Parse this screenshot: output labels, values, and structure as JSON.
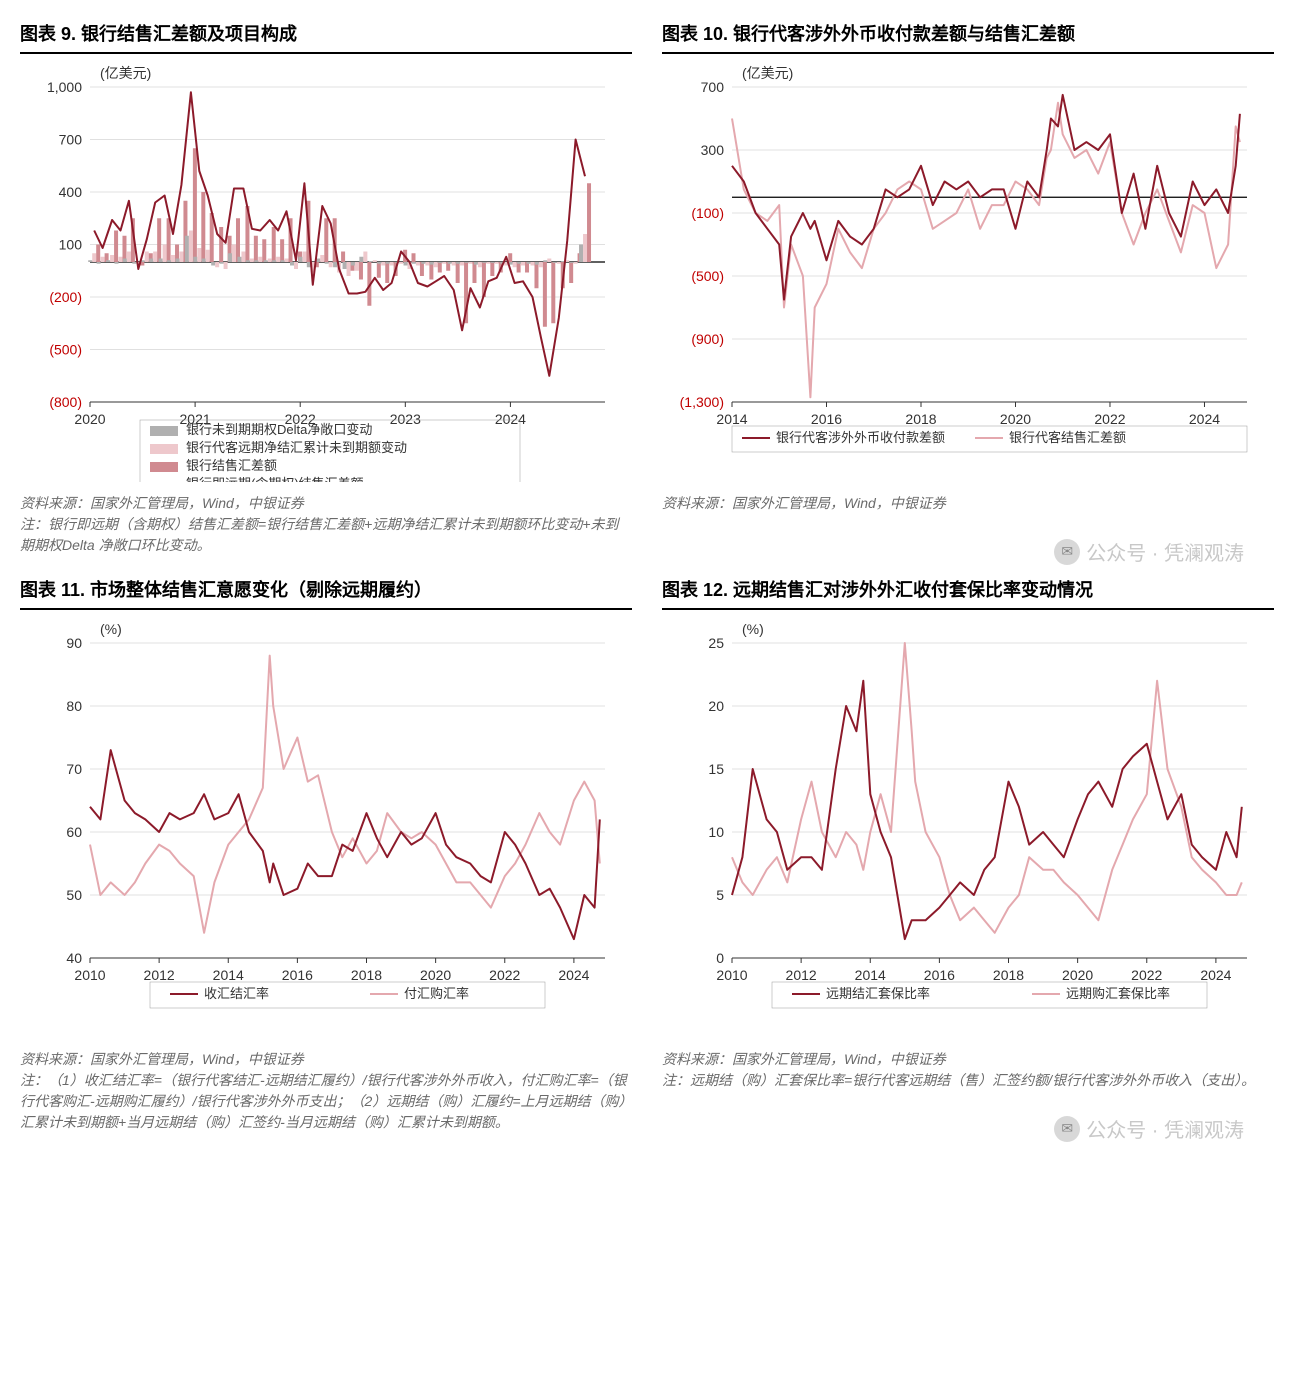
{
  "watermark": "公众号 · 凭澜观涛",
  "chart9": {
    "title": "图表 9. 银行结售汇差额及项目构成",
    "type": "bar+line",
    "y_unit": "(亿美元)",
    "xlim": [
      2020,
      2024.9
    ],
    "ylim": [
      -800,
      1000
    ],
    "yticks": [
      -800,
      -500,
      -200,
      100,
      400,
      700,
      1000
    ],
    "ytick_labels": [
      "(800)",
      "(500)",
      "(200)",
      "100",
      "400",
      "700",
      "1,000"
    ],
    "xticks": [
      2020,
      2021,
      2022,
      2023,
      2024
    ],
    "grid_color": "#e0e0e0",
    "zero_line_color": "#000000",
    "series": {
      "bar_grey": {
        "label": "银行未到期期权Delta净敞口变动",
        "color": "#b0b0b0"
      },
      "bar_light": {
        "label": "银行代客远期净结汇累计未到期额变动",
        "color": "#eec8cc"
      },
      "bar_red": {
        "label": "银行结售汇差额",
        "color": "#d08a90"
      },
      "line_dark": {
        "label": "银行即远期(含期权)结售汇差额",
        "color": "#8c1a2a",
        "width": 2
      }
    },
    "x": [
      2020.04,
      2020.12,
      2020.21,
      2020.29,
      2020.37,
      2020.46,
      2020.54,
      2020.62,
      2020.71,
      2020.79,
      2020.87,
      2020.96,
      2021.04,
      2021.12,
      2021.21,
      2021.29,
      2021.37,
      2021.46,
      2021.54,
      2021.62,
      2021.71,
      2021.79,
      2021.87,
      2021.96,
      2022.04,
      2022.12,
      2022.21,
      2022.29,
      2022.37,
      2022.46,
      2022.54,
      2022.62,
      2022.71,
      2022.79,
      2022.87,
      2022.96,
      2023.04,
      2023.12,
      2023.21,
      2023.29,
      2023.37,
      2023.46,
      2023.54,
      2023.62,
      2023.71,
      2023.79,
      2023.87,
      2023.96,
      2024.04,
      2024.12,
      2024.21,
      2024.29,
      2024.37,
      2024.46,
      2024.54,
      2024.62,
      2024.71
    ],
    "bar_red_values": [
      100,
      50,
      180,
      150,
      250,
      -20,
      50,
      250,
      250,
      100,
      350,
      650,
      400,
      280,
      200,
      150,
      250,
      320,
      150,
      130,
      200,
      130,
      250,
      60,
      350,
      -30,
      250,
      250,
      60,
      -50,
      -100,
      -250,
      -90,
      -120,
      -80,
      70,
      50,
      -80,
      -100,
      -60,
      -50,
      -120,
      -350,
      -120,
      -200,
      -80,
      -60,
      50,
      -60,
      -60,
      -150,
      -370,
      -350,
      -150,
      -120,
      50,
      450
    ],
    "bar_light_values": [
      50,
      30,
      40,
      30,
      60,
      -10,
      60,
      60,
      100,
      40,
      60,
      180,
      80,
      70,
      -30,
      -40,
      100,
      60,
      20,
      30,
      20,
      30,
      20,
      -40,
      60,
      -60,
      40,
      -30,
      -60,
      -80,
      -50,
      60,
      10,
      -20,
      -20,
      -10,
      -40,
      -20,
      -20,
      -30,
      -10,
      -20,
      -20,
      -10,
      -30,
      -10,
      -10,
      -20,
      -30,
      -20,
      -20,
      -30,
      20,
      -10,
      10,
      -10,
      160
    ],
    "bar_grey_values": [
      10,
      -10,
      10,
      -10,
      20,
      -10,
      10,
      20,
      20,
      10,
      20,
      150,
      30,
      20,
      -20,
      -10,
      50,
      30,
      10,
      10,
      10,
      10,
      10,
      -20,
      30,
      -30,
      20,
      -10,
      -30,
      -40,
      -20,
      30,
      5,
      -10,
      -10,
      -5,
      -20,
      -10,
      -10,
      -15,
      -5,
      -10,
      -10,
      -5,
      -15,
      -5,
      -5,
      -10,
      -15,
      -10,
      -10,
      -15,
      10,
      -5,
      5,
      -5,
      100
    ],
    "line_values": [
      180,
      80,
      240,
      180,
      350,
      -40,
      130,
      340,
      380,
      160,
      440,
      970,
      520,
      380,
      160,
      110,
      420,
      420,
      190,
      180,
      240,
      180,
      290,
      10,
      450,
      -130,
      320,
      220,
      -40,
      -180,
      -180,
      -170,
      -90,
      -160,
      -120,
      60,
      0,
      -120,
      -140,
      -110,
      -80,
      -160,
      -390,
      -150,
      -260,
      -110,
      -90,
      30,
      -120,
      -110,
      -200,
      -430,
      -650,
      -320,
      120,
      700,
      490
    ],
    "source": "资料来源：国家外汇管理局，Wind，中银证券",
    "note": "注：银行即远期（含期权）结售汇差额=银行结售汇差额+远期净结汇累计未到期额环比变动+未到期期权Delta 净敞口环比变动。"
  },
  "chart10": {
    "title": "图表 10. 银行代客涉外外币收付款差额与结售汇差额",
    "type": "line",
    "y_unit": "(亿美元)",
    "xlim": [
      2014,
      2024.9
    ],
    "ylim": [
      -1300,
      700
    ],
    "yticks": [
      -1300,
      -900,
      -500,
      -100,
      300,
      700
    ],
    "ytick_labels": [
      "(1,300)",
      "(900)",
      "(500)",
      "(100)",
      "300",
      "700"
    ],
    "xticks": [
      2014,
      2016,
      2018,
      2020,
      2022,
      2024
    ],
    "grid_color": "#e0e0e0",
    "zero_line_color": "#000000",
    "series": {
      "dark": {
        "label": "银行代客涉外外币收付款差额",
        "color": "#8c1a2a",
        "width": 2
      },
      "light": {
        "label": "银行代客结售汇差额",
        "color": "#e4a8ae",
        "width": 2
      }
    },
    "x": [
      2014.0,
      2014.25,
      2014.5,
      2014.75,
      2015.0,
      2015.1,
      2015.25,
      2015.5,
      2015.66,
      2015.75,
      2016.0,
      2016.25,
      2016.5,
      2016.75,
      2017.0,
      2017.25,
      2017.5,
      2017.75,
      2018.0,
      2018.25,
      2018.5,
      2018.75,
      2019.0,
      2019.25,
      2019.5,
      2019.75,
      2020.0,
      2020.25,
      2020.5,
      2020.66,
      2020.75,
      2020.9,
      2021.0,
      2021.25,
      2021.5,
      2021.75,
      2022.0,
      2022.25,
      2022.5,
      2022.75,
      2023.0,
      2023.25,
      2023.5,
      2023.75,
      2024.0,
      2024.25,
      2024.5,
      2024.66,
      2024.75
    ],
    "dark_values": [
      200,
      100,
      -100,
      -200,
      -300,
      -650,
      -250,
      -100,
      -200,
      -150,
      -400,
      -150,
      -250,
      -300,
      -200,
      50,
      0,
      50,
      200,
      -50,
      100,
      50,
      100,
      0,
      50,
      50,
      -200,
      100,
      0,
      300,
      500,
      450,
      650,
      300,
      350,
      300,
      400,
      -100,
      150,
      -200,
      200,
      -100,
      -250,
      100,
      -50,
      50,
      -100,
      200,
      530
    ],
    "light_values": [
      500,
      50,
      -100,
      -150,
      -50,
      -700,
      -300,
      -500,
      -1270,
      -700,
      -550,
      -200,
      -350,
      -450,
      -200,
      -100,
      50,
      100,
      50,
      -200,
      -150,
      -100,
      50,
      -200,
      -50,
      -50,
      100,
      50,
      -50,
      250,
      300,
      600,
      400,
      250,
      300,
      150,
      350,
      -100,
      -300,
      -100,
      50,
      -150,
      -350,
      -50,
      -100,
      -450,
      -300,
      450,
      350
    ],
    "source": "资料来源：国家外汇管理局，Wind，中银证券"
  },
  "chart11": {
    "title": "图表 11. 市场整体结售汇意愿变化（剔除远期履约）",
    "type": "line",
    "y_unit": "(%)",
    "xlim": [
      2010,
      2024.9
    ],
    "ylim": [
      40,
      90
    ],
    "yticks": [
      40,
      50,
      60,
      70,
      80,
      90
    ],
    "ytick_labels": [
      "40",
      "50",
      "60",
      "70",
      "80",
      "90"
    ],
    "xticks": [
      2010,
      2012,
      2014,
      2016,
      2018,
      2020,
      2022,
      2024
    ],
    "grid_color": "#e0e0e0",
    "series": {
      "dark": {
        "label": "收汇结汇率",
        "color": "#8c1a2a",
        "width": 2
      },
      "light": {
        "label": "付汇购汇率",
        "color": "#e4a8ae",
        "width": 2
      }
    },
    "x": [
      2010.0,
      2010.3,
      2010.6,
      2011.0,
      2011.3,
      2011.6,
      2012.0,
      2012.3,
      2012.6,
      2013.0,
      2013.3,
      2013.6,
      2014.0,
      2014.3,
      2014.6,
      2015.0,
      2015.2,
      2015.3,
      2015.6,
      2016.0,
      2016.3,
      2016.6,
      2017.0,
      2017.3,
      2017.6,
      2018.0,
      2018.3,
      2018.6,
      2019.0,
      2019.3,
      2019.6,
      2020.0,
      2020.3,
      2020.6,
      2021.0,
      2021.3,
      2021.6,
      2022.0,
      2022.3,
      2022.6,
      2023.0,
      2023.3,
      2023.6,
      2024.0,
      2024.3,
      2024.6,
      2024.75
    ],
    "dark_values": [
      64,
      62,
      73,
      65,
      63,
      62,
      60,
      63,
      62,
      63,
      66,
      62,
      63,
      66,
      60,
      57,
      52,
      55,
      50,
      51,
      55,
      53,
      53,
      58,
      57,
      63,
      59,
      56,
      60,
      58,
      59,
      63,
      58,
      56,
      55,
      53,
      52,
      60,
      58,
      55,
      50,
      51,
      48,
      43,
      50,
      48,
      62
    ],
    "light_values": [
      58,
      50,
      52,
      50,
      52,
      55,
      58,
      57,
      55,
      53,
      44,
      52,
      58,
      60,
      62,
      67,
      88,
      80,
      70,
      75,
      68,
      69,
      60,
      56,
      59,
      55,
      57,
      63,
      60,
      59,
      60,
      58,
      55,
      52,
      52,
      50,
      48,
      53,
      55,
      58,
      63,
      60,
      58,
      65,
      68,
      65,
      55
    ],
    "source": "资料来源：国家外汇管理局，Wind，中银证券",
    "note": "注：（1）收汇结汇率=（银行代客结汇-远期结汇履约）/银行代客涉外外币收入，付汇购汇率=（银行代客购汇-远期购汇履约）/银行代客涉外外币支出；（2）远期结（购）汇履约=上月远期结（购）汇累计未到期额+当月远期结（购）汇签约-当月远期结（购）汇累计未到期额。"
  },
  "chart12": {
    "title": "图表 12. 远期结售汇对涉外外汇收付套保比率变动情况",
    "type": "line",
    "y_unit": "(%)",
    "xlim": [
      2010,
      2024.9
    ],
    "ylim": [
      0,
      25
    ],
    "yticks": [
      0,
      5,
      10,
      15,
      20,
      25
    ],
    "ytick_labels": [
      "0",
      "5",
      "10",
      "15",
      "20",
      "25"
    ],
    "xticks": [
      2010,
      2012,
      2014,
      2016,
      2018,
      2020,
      2022,
      2024
    ],
    "grid_color": "#e0e0e0",
    "series": {
      "dark": {
        "label": "远期结汇套保比率",
        "color": "#8c1a2a",
        "width": 2
      },
      "light": {
        "label": "远期购汇套保比率",
        "color": "#e4a8ae",
        "width": 2
      }
    },
    "x": [
      2010.0,
      2010.3,
      2010.6,
      2011.0,
      2011.3,
      2011.6,
      2012.0,
      2012.3,
      2012.6,
      2013.0,
      2013.3,
      2013.6,
      2013.8,
      2014.0,
      2014.3,
      2014.6,
      2015.0,
      2015.2,
      2015.3,
      2015.6,
      2016.0,
      2016.3,
      2016.6,
      2017.0,
      2017.3,
      2017.6,
      2018.0,
      2018.3,
      2018.6,
      2019.0,
      2019.3,
      2019.6,
      2020.0,
      2020.3,
      2020.6,
      2021.0,
      2021.3,
      2021.6,
      2022.0,
      2022.3,
      2022.6,
      2023.0,
      2023.3,
      2023.6,
      2024.0,
      2024.3,
      2024.6,
      2024.75
    ],
    "dark_values": [
      5,
      8,
      15,
      11,
      10,
      7,
      8,
      8,
      7,
      15,
      20,
      18,
      22,
      13,
      10,
      8,
      1.5,
      3,
      3,
      3,
      4,
      5,
      6,
      5,
      7,
      8,
      14,
      12,
      9,
      10,
      9,
      8,
      11,
      13,
      14,
      12,
      15,
      16,
      17,
      14,
      11,
      13,
      9,
      8,
      7,
      10,
      8,
      12
    ],
    "light_values": [
      8,
      6,
      5,
      7,
      8,
      6,
      11,
      14,
      10,
      8,
      10,
      9,
      7,
      10,
      13,
      10,
      25,
      18,
      14,
      10,
      8,
      5,
      3,
      4,
      3,
      2,
      4,
      5,
      8,
      7,
      7,
      6,
      5,
      4,
      3,
      7,
      9,
      11,
      13,
      22,
      15,
      12,
      8,
      7,
      6,
      5,
      5,
      6
    ],
    "source": "资料来源：国家外汇管理局，Wind，中银证券",
    "note": "注：远期结（购）汇套保比率=银行代客远期结（售）汇签约额/银行代客涉外外币收入（支出）。"
  }
}
